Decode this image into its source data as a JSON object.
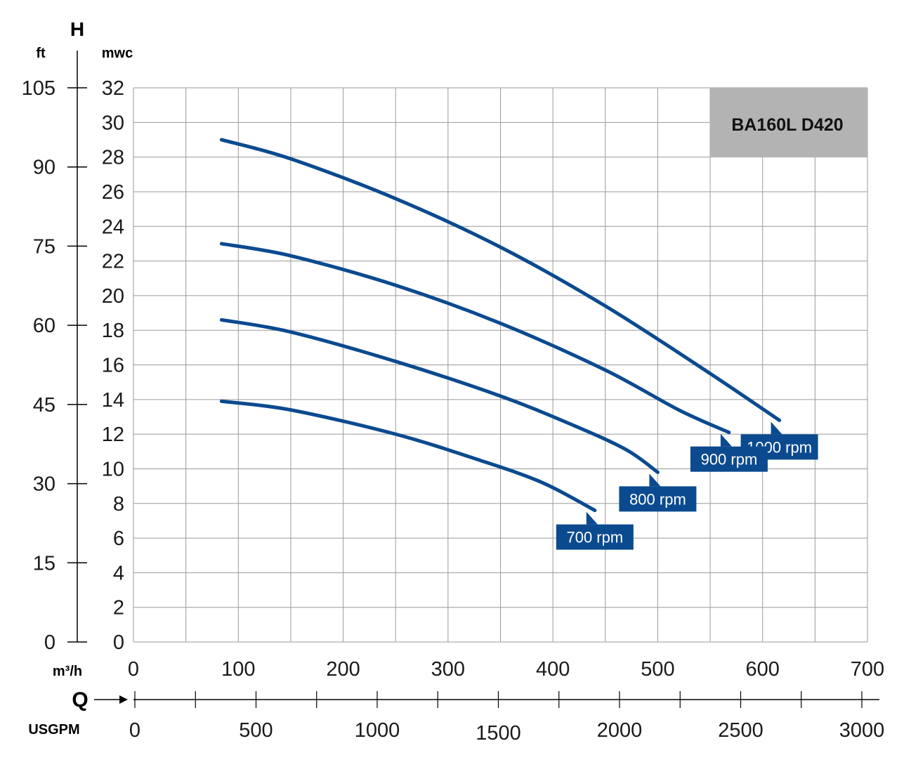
{
  "chart_data": {
    "type": "line",
    "title": "BA160L D420",
    "y_axis_label": "H",
    "y_units": {
      "left": "ft",
      "right": "mwc"
    },
    "x_axis_label": "Q",
    "x_units": {
      "top": "m³/h",
      "bottom": "USGPM"
    },
    "mwc_ticks": [
      "0",
      "2",
      "4",
      "6",
      "8",
      "10",
      "12",
      "14",
      "16",
      "18",
      "20",
      "22",
      "24",
      "26",
      "28",
      "30",
      "32"
    ],
    "ft_ticks": [
      "0",
      "15",
      "30",
      "45",
      "60",
      "75",
      "90",
      "105"
    ],
    "m3h_ticks": [
      "0",
      "100",
      "200",
      "300",
      "400",
      "500",
      "600",
      "700"
    ],
    "usgpm_ticks": [
      "0",
      "500",
      "1000",
      "1500",
      "2000",
      "2500",
      "3000"
    ],
    "ylim_mwc": [
      0,
      32
    ],
    "ylim_ft": [
      0,
      105
    ],
    "xlim_m3h": [
      0,
      700
    ],
    "xlim_usgpm": [
      0,
      3000
    ],
    "grid": true,
    "colors": {
      "curve": "#0b4a8f",
      "label_bg": "#0b4a8f",
      "title_bg": "#b3b3b3",
      "grid": "#9a9a9a"
    },
    "series": [
      {
        "name": "1000 rpm",
        "x": [
          84,
          150,
          250,
          350,
          450,
          550,
          616
        ],
        "y": [
          29.0,
          27.9,
          25.6,
          22.8,
          19.4,
          15.5,
          12.8
        ]
      },
      {
        "name": "900 rpm",
        "x": [
          84,
          150,
          250,
          350,
          450,
          520,
          568
        ],
        "y": [
          23.0,
          22.3,
          20.6,
          18.4,
          15.7,
          13.4,
          12.1
        ]
      },
      {
        "name": "800 rpm",
        "x": [
          84,
          150,
          250,
          350,
          420,
          470,
          500
        ],
        "y": [
          18.6,
          17.9,
          16.2,
          14.2,
          12.5,
          11.1,
          9.8
        ]
      },
      {
        "name": "700 rpm",
        "x": [
          84,
          150,
          250,
          330,
          390,
          440
        ],
        "y": [
          13.9,
          13.4,
          12.0,
          10.5,
          9.2,
          7.6
        ]
      }
    ]
  }
}
